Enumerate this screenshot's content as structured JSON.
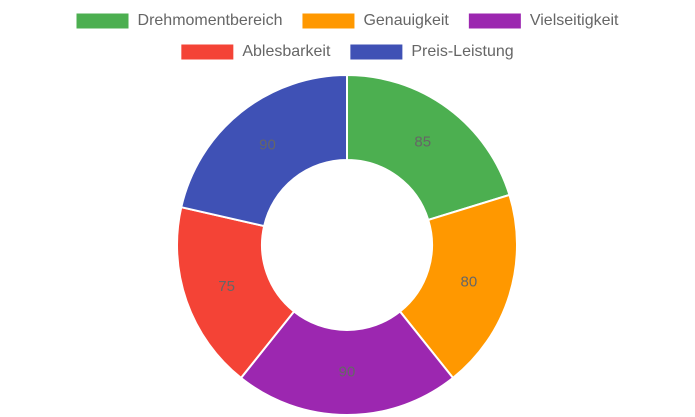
{
  "chart_data": {
    "type": "doughnut",
    "categories": [
      "Drehmomentbereich",
      "Genauigkeit",
      "Vielseitigkeit",
      "Ablesbarkeit",
      "Preis-Leistung"
    ],
    "values": [
      85,
      80,
      90,
      75,
      90
    ],
    "colors": [
      "#4caf50",
      "#ff9800",
      "#9c27b0",
      "#f44336",
      "#3f51b5"
    ],
    "legend": "top"
  }
}
